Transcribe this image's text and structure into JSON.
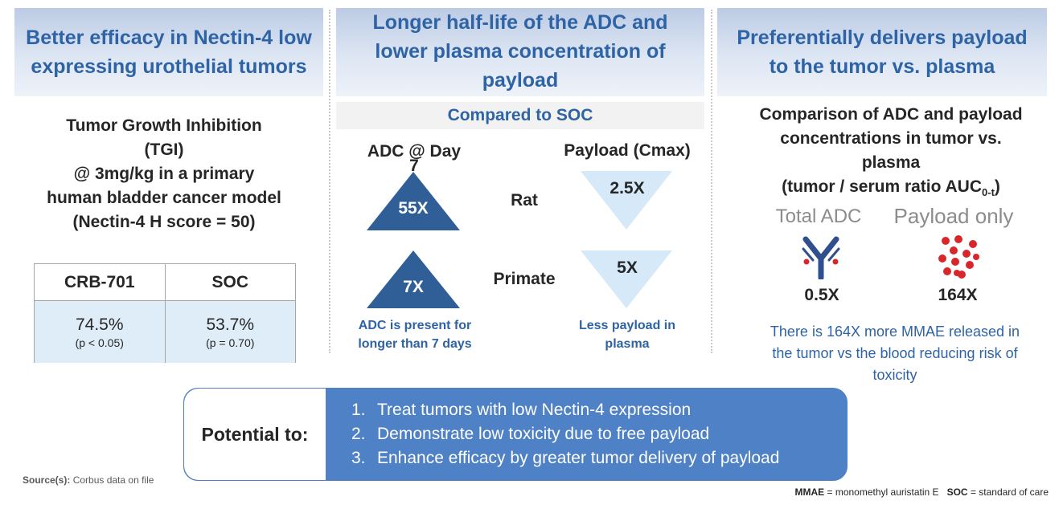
{
  "columns": [
    {
      "title_lines": [
        "Better efficacy in Nectin-4 low",
        "expressing urothelial tumors"
      ]
    },
    {
      "title_lines": [
        "Longer half-life of the ADC and",
        "lower plasma concentration of",
        "payload"
      ]
    },
    {
      "title_lines": [
        "Preferentially delivers payload",
        "to the tumor vs. plasma"
      ]
    }
  ],
  "tgi": {
    "lines": [
      "Tumor Growth Inhibition",
      "(TGI)",
      "@ 3mg/kg in a primary",
      "human bladder cancer model",
      "(Nectin-4 H score = 50)"
    ],
    "table": {
      "headers": [
        "CRB-701",
        "SOC"
      ],
      "values": [
        "74.5%",
        "53.7%"
      ],
      "pvalues": [
        "(p < 0.05)",
        "(p = 0.70)"
      ]
    }
  },
  "compare": {
    "banner": "Compared to SOC",
    "adc_header_lines": [
      "ADC @ Day",
      "7"
    ],
    "payload_header": "Payload (Cmax)",
    "rows": [
      {
        "species": "Rat",
        "adc": "55X",
        "payload": "2.5X"
      },
      {
        "species": "Primate",
        "adc": "7X",
        "payload": "5X"
      }
    ],
    "adc_note_lines": [
      "ADC is present for",
      "longer than 7 days"
    ],
    "payload_note_lines": [
      "Less payload in",
      "plasma"
    ]
  },
  "tumor": {
    "lines": [
      "Comparison of ADC and payload",
      "concentrations in tumor vs.",
      "plasma"
    ],
    "ratio_label": "(tumor / serum ratio AUC",
    "ratio_sub": "0-t",
    "ratio_close": ")",
    "total_adc_label": "Total ADC",
    "payload_only_label": "Payload only",
    "total_adc_value": "0.5X",
    "payload_only_value": "164X",
    "note_lines": [
      "There is 164X more MMAE released in",
      "the tumor vs the blood reducing risk of",
      "toxicity"
    ]
  },
  "potential": {
    "label": "Potential to:",
    "items": [
      {
        "num": "1.",
        "text": "Treat tumors with low Nectin-4 expression"
      },
      {
        "num": "2.",
        "text": "Demonstrate low toxicity due to free payload"
      },
      {
        "num": "3.",
        "text": "Enhance efficacy by greater tumor delivery of payload"
      }
    ]
  },
  "source": {
    "label": "Source(s):",
    "text": "Corbus data on file"
  },
  "footnote": {
    "abbr1": "MMAE",
    "def1": "= monomethyl auristatin E",
    "abbr2": "SOC",
    "def2": "= standard of care"
  },
  "colors": {
    "title_blue": "#2e63a6",
    "dark_triangle": "#2f5f96",
    "light_triangle": "#d6e9f8",
    "box_blue": "#4f81c7",
    "red_dot": "#d9262b"
  },
  "icons": [
    "antibody-icon",
    "payload-cluster-icon"
  ]
}
